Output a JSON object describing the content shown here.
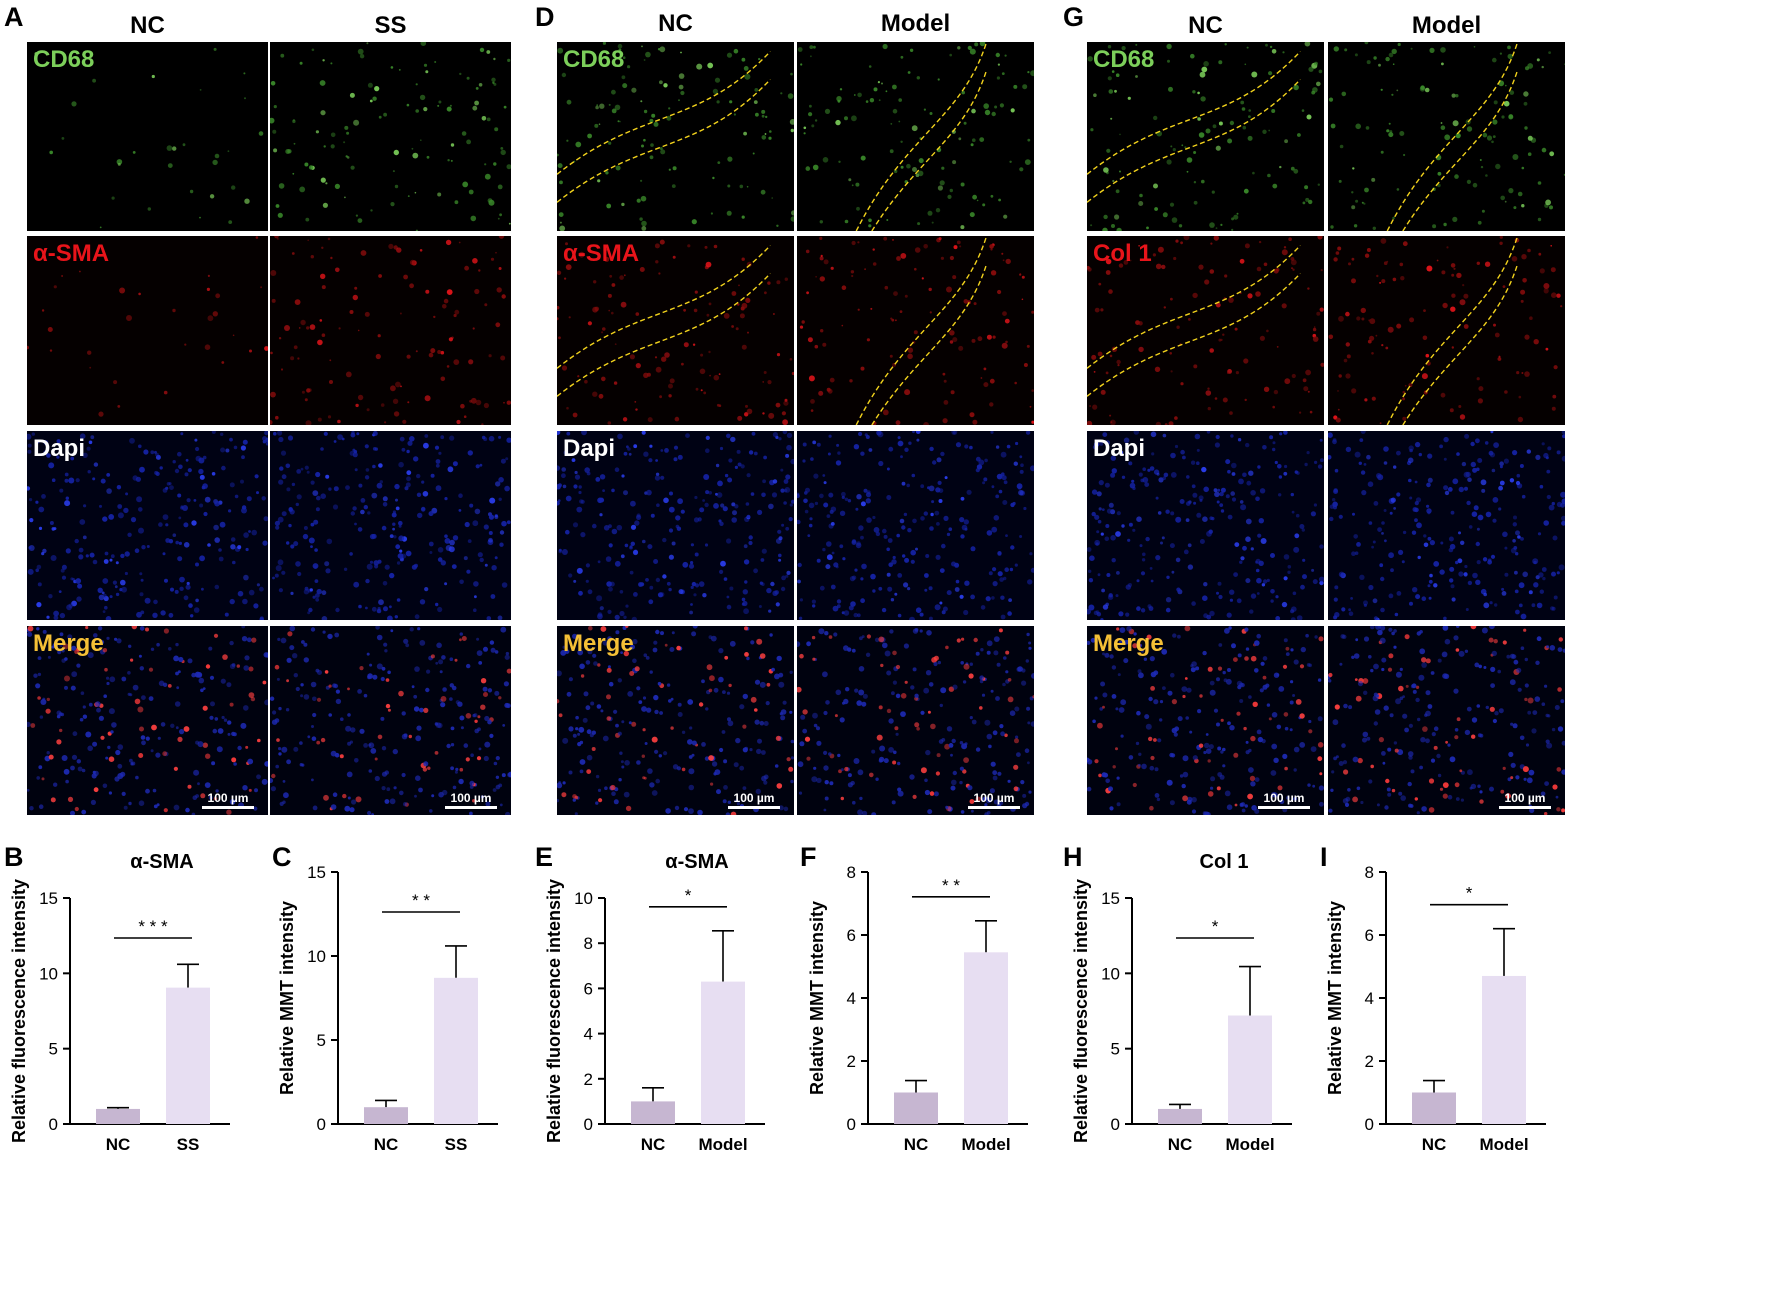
{
  "panels": {
    "A": {
      "letter": "A",
      "columns": [
        "NC",
        "SS"
      ]
    },
    "D": {
      "letter": "D",
      "columns": [
        "NC",
        "Model"
      ]
    },
    "G": {
      "letter": "G",
      "columns": [
        "NC",
        "Model"
      ]
    }
  },
  "stain_labels": {
    "A": [
      "CD68",
      "α-SMA",
      "Dapi",
      "Merge"
    ],
    "D": [
      "CD68",
      "α-SMA",
      "Dapi",
      "Merge"
    ],
    "G": [
      "CD68",
      "Col 1",
      "Dapi",
      "Merge"
    ]
  },
  "stain_colors": [
    "#7ccf5a",
    "#e8141a",
    "#ffffff",
    "#f5c036"
  ],
  "scale_bar": "100 µm",
  "chart_data": [
    {
      "letter": "B",
      "type": "bar",
      "title": "α-SMA",
      "ylabel": "Relative fluorescence intensity",
      "categories": [
        "NC",
        "SS"
      ],
      "values": [
        1.0,
        9.05
      ],
      "errors": [
        0.08,
        1.55
      ],
      "ylim": [
        0,
        15
      ],
      "yticks": [
        0,
        5,
        10,
        15
      ],
      "significance": "* * *",
      "colors": [
        "#c6b6d1",
        "#e7def2"
      ]
    },
    {
      "letter": "C",
      "type": "bar",
      "title": "",
      "ylabel": "Relative MMT intensity",
      "categories": [
        "NC",
        "SS"
      ],
      "values": [
        1.0,
        8.7
      ],
      "errors": [
        0.4,
        1.9
      ],
      "ylim": [
        0,
        15
      ],
      "yticks": [
        0,
        5,
        10,
        15
      ],
      "significance": "* *",
      "colors": [
        "#c6b6d1",
        "#e7def2"
      ]
    },
    {
      "letter": "E",
      "type": "bar",
      "title": "α-SMA",
      "ylabel": "Relative fluorescence intensity",
      "categories": [
        "NC",
        "Model"
      ],
      "values": [
        1.0,
        6.3
      ],
      "errors": [
        0.6,
        2.25
      ],
      "ylim": [
        0,
        10
      ],
      "yticks": [
        0,
        2,
        4,
        6,
        8,
        10
      ],
      "significance": "*",
      "colors": [
        "#c6b6d1",
        "#e7def2"
      ]
    },
    {
      "letter": "F",
      "type": "bar",
      "title": "",
      "ylabel": "Relative MMT intensity",
      "categories": [
        "NC",
        "Model"
      ],
      "values": [
        1.0,
        5.45
      ],
      "errors": [
        0.38,
        1.0
      ],
      "ylim": [
        0,
        8
      ],
      "yticks": [
        0,
        2,
        4,
        6,
        8
      ],
      "significance": "* *",
      "colors": [
        "#c6b6d1",
        "#e7def2"
      ]
    },
    {
      "letter": "H",
      "type": "bar",
      "title": "Col 1",
      "ylabel": "Relative fluorescence intensity",
      "categories": [
        "NC",
        "Model"
      ],
      "values": [
        1.0,
        7.2
      ],
      "errors": [
        0.3,
        3.25
      ],
      "ylim": [
        0,
        15
      ],
      "yticks": [
        0,
        5,
        10,
        15
      ],
      "significance": "*",
      "colors": [
        "#c6b6d1",
        "#e7def2"
      ]
    },
    {
      "letter": "I",
      "type": "bar",
      "title": "",
      "ylabel": "Relative MMT intensity",
      "categories": [
        "NC",
        "Model"
      ],
      "values": [
        1.0,
        4.7
      ],
      "errors": [
        0.38,
        1.5
      ],
      "ylim": [
        0,
        8
      ],
      "yticks": [
        0,
        2,
        4,
        6,
        8
      ],
      "significance": "*",
      "colors": [
        "#c6b6d1",
        "#e7def2"
      ]
    }
  ]
}
